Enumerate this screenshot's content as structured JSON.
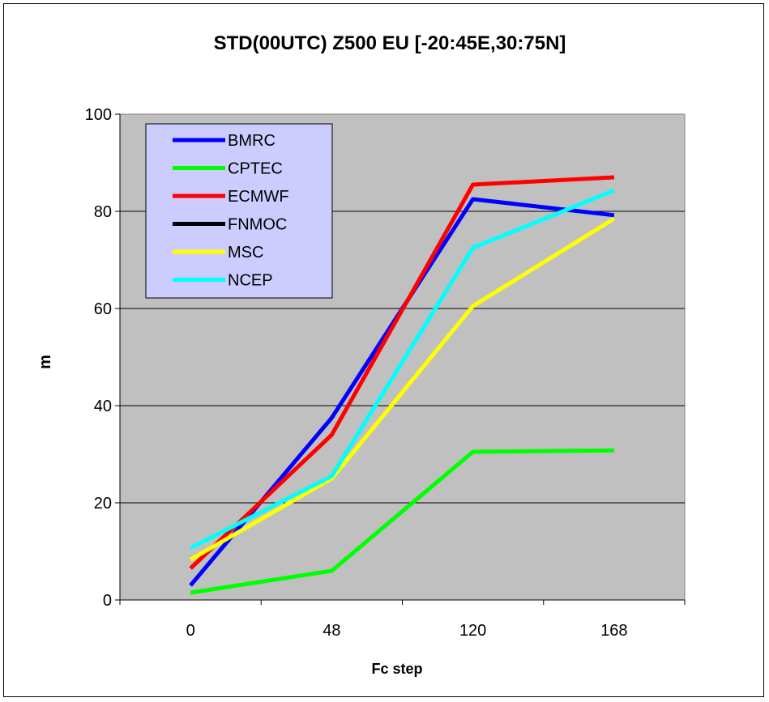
{
  "chart_data": {
    "type": "line",
    "title": "STD(00UTC) Z500 EU [-20:45E,30:75N]",
    "xlabel": "Fc step",
    "ylabel": "m",
    "categories": [
      "0",
      "48",
      "120",
      "168"
    ],
    "ylim": [
      0,
      100
    ],
    "yticks": [
      0,
      20,
      40,
      60,
      80,
      100
    ],
    "grid": true,
    "legend_position": "top-left",
    "plot_background": "#c0c0c0",
    "legend_background": "#ccccff",
    "series": [
      {
        "name": "BMRC",
        "color": "#0000ff",
        "values": [
          3.0,
          37.5,
          82.5,
          79.2
        ]
      },
      {
        "name": "CPTEC",
        "color": "#00ff00",
        "values": [
          1.5,
          6.0,
          30.5,
          30.8
        ]
      },
      {
        "name": "ECMWF",
        "color": "#ff0000",
        "values": [
          6.5,
          34.0,
          85.5,
          87.0
        ]
      },
      {
        "name": "FNMOC",
        "color": "#000000",
        "values": [
          null,
          null,
          null,
          null
        ]
      },
      {
        "name": "MSC",
        "color": "#ffff00",
        "values": [
          8.3,
          25.0,
          60.5,
          78.5
        ]
      },
      {
        "name": "NCEP",
        "color": "#00ffff",
        "values": [
          10.7,
          25.5,
          72.5,
          84.3
        ]
      }
    ]
  }
}
